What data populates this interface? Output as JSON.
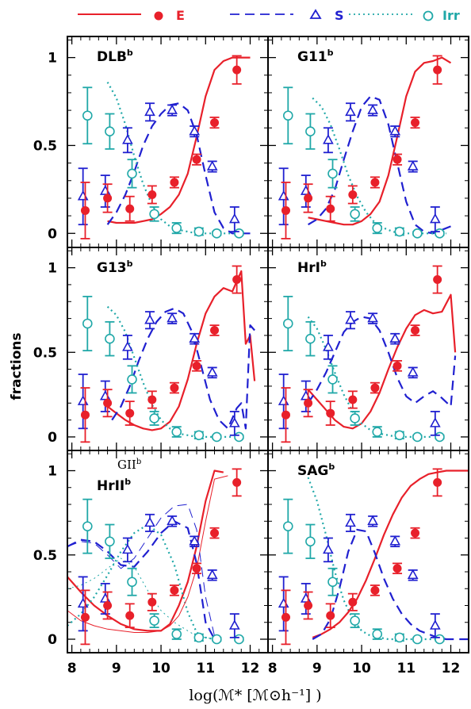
{
  "colors": {
    "E": "#e8202a",
    "S": "#2020d0",
    "Irr": "#20a8a8",
    "frame": "#000000"
  },
  "legend": [
    {
      "key": "E",
      "label": "E",
      "line": "solid",
      "marker": "filled-circle"
    },
    {
      "key": "S",
      "label": "S",
      "line": "dashed",
      "marker": "open-triangle"
    },
    {
      "key": "Irr",
      "label": "Irr",
      "line": "dotted",
      "marker": "open-circle"
    }
  ],
  "axes": {
    "xlabel": "log(ℳ* [ℳ⊙h⁻¹] )",
    "ylabel": "fractions"
  },
  "chart_data": {
    "type": "scatter",
    "layout": "3 rows x 2 columns, shared axes",
    "xlim": [
      7.9,
      12.4
    ],
    "ylim": [
      -0.08,
      1.12
    ],
    "xticks": [
      8,
      9,
      10,
      11,
      12
    ],
    "yticks": [
      0,
      0.5,
      1
    ],
    "xtick_labels": [
      "8",
      "9",
      "10",
      "11",
      "12"
    ],
    "ytick_labels": [
      "0",
      "0.5",
      "1"
    ],
    "observations": {
      "E": {
        "x": [
          8.3,
          8.8,
          9.3,
          9.8,
          10.3,
          10.8,
          11.2,
          11.7
        ],
        "y": [
          0.13,
          0.2,
          0.14,
          0.22,
          0.29,
          0.42,
          0.63,
          0.93
        ],
        "err": [
          0.16,
          0.08,
          0.07,
          0.05,
          0.03,
          0.03,
          0.03,
          0.08
        ]
      },
      "S": {
        "x": [
          8.25,
          8.75,
          9.25,
          9.75,
          10.25,
          10.75,
          11.15,
          11.65
        ],
        "y": [
          0.21,
          0.24,
          0.53,
          0.69,
          0.7,
          0.58,
          0.38,
          0.08
        ],
        "err": [
          0.16,
          0.09,
          0.07,
          0.05,
          0.03,
          0.03,
          0.03,
          0.07
        ]
      },
      "Irr": {
        "x": [
          8.35,
          8.85,
          9.35,
          9.85,
          10.35,
          10.85,
          11.25,
          11.75
        ],
        "y": [
          0.67,
          0.58,
          0.34,
          0.11,
          0.03,
          0.01,
          0.0,
          0.0
        ],
        "err": [
          0.16,
          0.1,
          0.08,
          0.04,
          0.03,
          0.02,
          0.01,
          0.01
        ]
      }
    },
    "panels": [
      {
        "title": "DLB",
        "sup": "b",
        "E": {
          "x": [
            8.8,
            9.0,
            9.2,
            9.4,
            9.6,
            9.8,
            10.0,
            10.2,
            10.4,
            10.6,
            10.8,
            11.0,
            11.2,
            11.4,
            11.6,
            11.8,
            12.0
          ],
          "y": [
            0.07,
            0.06,
            0.06,
            0.06,
            0.07,
            0.08,
            0.11,
            0.15,
            0.22,
            0.34,
            0.55,
            0.78,
            0.93,
            0.98,
            1.0,
            1.0,
            1.0
          ]
        },
        "S": {
          "x": [
            8.8,
            9.0,
            9.2,
            9.4,
            9.6,
            9.8,
            10.0,
            10.2,
            10.4,
            10.6,
            10.8,
            11.0,
            11.2,
            11.4,
            11.6,
            11.8,
            12.0
          ],
          "y": [
            0.05,
            0.12,
            0.22,
            0.35,
            0.5,
            0.61,
            0.68,
            0.73,
            0.74,
            0.7,
            0.56,
            0.33,
            0.12,
            0.03,
            0.0,
            0.0,
            0.0
          ]
        },
        "Irr": {
          "x": [
            8.8,
            9.0,
            9.2,
            9.4,
            9.6,
            9.8,
            10.0,
            10.2,
            10.4,
            10.6,
            10.8,
            11.0,
            11.2,
            11.4,
            11.6
          ],
          "y": [
            0.86,
            0.77,
            0.62,
            0.44,
            0.28,
            0.16,
            0.08,
            0.04,
            0.02,
            0.01,
            0.0,
            0.0,
            0.0,
            0.0,
            0.0
          ]
        }
      },
      {
        "title": "G11",
        "sup": "b",
        "E": {
          "x": [
            8.8,
            9.0,
            9.2,
            9.4,
            9.6,
            9.8,
            10.0,
            10.2,
            10.4,
            10.6,
            10.8,
            11.0,
            11.2,
            11.4,
            11.6,
            11.8,
            12.0
          ],
          "y": [
            0.09,
            0.08,
            0.07,
            0.06,
            0.05,
            0.05,
            0.07,
            0.11,
            0.18,
            0.33,
            0.55,
            0.78,
            0.92,
            0.97,
            0.98,
            1.0,
            0.97
          ]
        },
        "S": {
          "x": [
            8.8,
            9.0,
            9.2,
            9.4,
            9.6,
            9.8,
            10.0,
            10.2,
            10.4,
            10.6,
            10.8,
            11.0,
            11.2,
            11.4,
            11.6,
            11.8,
            12.0
          ],
          "y": [
            0.05,
            0.08,
            0.14,
            0.25,
            0.42,
            0.58,
            0.72,
            0.78,
            0.76,
            0.62,
            0.4,
            0.18,
            0.05,
            0.01,
            0.0,
            0.02,
            0.04
          ]
        },
        "Irr": {
          "x": [
            8.9,
            9.1,
            9.3,
            9.5,
            9.7,
            9.9,
            10.1,
            10.3,
            10.5,
            10.7,
            10.9,
            11.1,
            11.3,
            11.5,
            11.7,
            11.9
          ],
          "y": [
            0.77,
            0.72,
            0.62,
            0.48,
            0.33,
            0.21,
            0.12,
            0.06,
            0.03,
            0.01,
            0.0,
            0.0,
            0.0,
            0.0,
            0.0,
            0.0
          ]
        }
      },
      {
        "title": "G13",
        "sup": "b",
        "E": {
          "x": [
            8.8,
            9.0,
            9.2,
            9.4,
            9.6,
            9.8,
            10.0,
            10.2,
            10.4,
            10.6,
            10.8,
            11.0,
            11.2,
            11.4,
            11.6,
            11.8,
            11.9,
            12.0,
            12.1
          ],
          "y": [
            0.18,
            0.14,
            0.1,
            0.07,
            0.05,
            0.04,
            0.05,
            0.09,
            0.18,
            0.34,
            0.55,
            0.73,
            0.83,
            0.88,
            0.86,
            0.98,
            0.55,
            0.6,
            0.33
          ]
        },
        "S": {
          "x": [
            8.9,
            9.1,
            9.3,
            9.5,
            9.7,
            9.9,
            10.1,
            10.3,
            10.5,
            10.7,
            10.9,
            11.1,
            11.3,
            11.5,
            11.7,
            11.8,
            11.9,
            12.0,
            12.1
          ],
          "y": [
            0.1,
            0.18,
            0.3,
            0.45,
            0.58,
            0.68,
            0.74,
            0.76,
            0.73,
            0.62,
            0.42,
            0.22,
            0.1,
            0.05,
            0.17,
            0.2,
            0.05,
            0.66,
            0.63
          ]
        },
        "Irr": {
          "x": [
            8.8,
            9.0,
            9.2,
            9.4,
            9.6,
            9.8,
            10.0,
            10.2,
            10.4,
            10.6,
            10.8,
            11.0,
            11.2,
            11.4,
            11.6
          ],
          "y": [
            0.77,
            0.72,
            0.62,
            0.47,
            0.32,
            0.19,
            0.1,
            0.05,
            0.02,
            0.01,
            0.0,
            0.0,
            0.0,
            0.0,
            0.0
          ]
        }
      },
      {
        "title": "HrI",
        "sup": "b",
        "E": {
          "x": [
            8.8,
            9.0,
            9.2,
            9.4,
            9.6,
            9.8,
            10.0,
            10.2,
            10.4,
            10.6,
            10.8,
            11.0,
            11.2,
            11.4,
            11.6,
            11.8,
            12.0,
            12.1
          ],
          "y": [
            0.28,
            0.22,
            0.16,
            0.1,
            0.06,
            0.05,
            0.08,
            0.15,
            0.26,
            0.4,
            0.53,
            0.64,
            0.72,
            0.75,
            0.73,
            0.74,
            0.84,
            0.5
          ]
        },
        "S": {
          "x": [
            8.8,
            9.0,
            9.2,
            9.4,
            9.6,
            9.8,
            10.0,
            10.2,
            10.4,
            10.6,
            10.8,
            11.0,
            11.2,
            11.4,
            11.6,
            11.8,
            12.0,
            12.1
          ],
          "y": [
            0.2,
            0.28,
            0.38,
            0.5,
            0.62,
            0.68,
            0.71,
            0.7,
            0.63,
            0.5,
            0.35,
            0.24,
            0.2,
            0.24,
            0.27,
            0.23,
            0.18,
            0.48
          ]
        },
        "Irr": {
          "x": [
            8.8,
            9.0,
            9.2,
            9.4,
            9.6,
            9.8,
            10.0,
            10.2,
            10.4,
            10.6,
            10.8,
            11.0,
            11.2,
            11.4,
            11.6
          ],
          "y": [
            0.71,
            0.64,
            0.52,
            0.38,
            0.25,
            0.15,
            0.08,
            0.04,
            0.02,
            0.01,
            0.0,
            0.0,
            0.0,
            0.0,
            0.0
          ]
        }
      },
      {
        "title": "HrII",
        "sup": "b",
        "subtitle": "GII",
        "subtitle_sup": "b",
        "E": {
          "x": [
            7.9,
            8.2,
            8.5,
            8.8,
            9.1,
            9.4,
            9.7,
            10.0,
            10.2,
            10.4,
            10.6,
            10.8,
            11.0,
            11.2,
            11.4
          ],
          "y": [
            0.37,
            0.28,
            0.2,
            0.14,
            0.09,
            0.06,
            0.05,
            0.05,
            0.09,
            0.2,
            0.34,
            0.55,
            0.82,
            1.0,
            0.99
          ]
        },
        "S": {
          "x": [
            7.9,
            8.2,
            8.5,
            8.8,
            9.1,
            9.4,
            9.7,
            10.0,
            10.3,
            10.6,
            10.8,
            11.0,
            11.2
          ],
          "y": [
            0.55,
            0.59,
            0.58,
            0.52,
            0.44,
            0.43,
            0.52,
            0.63,
            0.7,
            0.66,
            0.45,
            0.1,
            0.0
          ]
        },
        "Irr": {
          "x": [
            7.9,
            8.2,
            8.5,
            8.8,
            9.1,
            9.4,
            9.7,
            10.0,
            10.3,
            10.6,
            10.8,
            11.0,
            11.2
          ],
          "y": [
            0.08,
            0.15,
            0.25,
            0.38,
            0.52,
            0.63,
            0.68,
            0.62,
            0.44,
            0.16,
            0.04,
            0.01,
            0.0
          ]
        },
        "E_thin": {
          "x": [
            7.9,
            8.2,
            8.5,
            8.8,
            9.1,
            9.4,
            9.7,
            10.0,
            10.2,
            10.4,
            10.6,
            10.8,
            11.0,
            11.2,
            11.5
          ],
          "y": [
            0.17,
            0.11,
            0.08,
            0.06,
            0.05,
            0.04,
            0.04,
            0.05,
            0.08,
            0.14,
            0.25,
            0.42,
            0.7,
            0.95,
            0.97
          ]
        },
        "S_thin": {
          "x": [
            7.9,
            8.2,
            8.5,
            8.8,
            9.1,
            9.4,
            9.7,
            10.0,
            10.3,
            10.6,
            10.8,
            11.0,
            11.2
          ],
          "y": [
            0.55,
            0.58,
            0.57,
            0.5,
            0.42,
            0.48,
            0.6,
            0.72,
            0.79,
            0.8,
            0.65,
            0.25,
            0.02
          ]
        },
        "Irr_thin": {
          "x": [
            7.9,
            8.2,
            8.5,
            8.8,
            9.1,
            9.4,
            9.7,
            10.0,
            10.3,
            10.6,
            10.8,
            11.0,
            11.2
          ],
          "y": [
            0.3,
            0.32,
            0.36,
            0.42,
            0.48,
            0.43,
            0.29,
            0.17,
            0.1,
            0.05,
            0.02,
            0.01,
            0.0
          ]
        }
      },
      {
        "title": "SAG",
        "sup": "b",
        "E": {
          "x": [
            8.9,
            9.1,
            9.3,
            9.5,
            9.7,
            9.9,
            10.1,
            10.3,
            10.5,
            10.7,
            10.9,
            11.1,
            11.3,
            11.5,
            11.7,
            11.9,
            12.1,
            12.4
          ],
          "y": [
            0.01,
            0.03,
            0.06,
            0.1,
            0.16,
            0.24,
            0.35,
            0.48,
            0.62,
            0.74,
            0.84,
            0.91,
            0.95,
            0.98,
            0.99,
            1.0,
            1.0,
            1.0
          ]
        },
        "S": {
          "x": [
            8.9,
            9.1,
            9.3,
            9.5,
            9.7,
            9.9,
            10.1,
            10.3,
            10.5,
            10.7,
            10.9,
            11.1,
            11.3,
            11.5,
            11.7,
            11.9,
            12.1,
            12.4
          ],
          "y": [
            0.0,
            0.03,
            0.12,
            0.3,
            0.52,
            0.65,
            0.64,
            0.51,
            0.36,
            0.24,
            0.15,
            0.09,
            0.05,
            0.03,
            0.01,
            0.0,
            0.0,
            0.0
          ]
        },
        "Irr": {
          "x": [
            8.8,
            9.0,
            9.2,
            9.4,
            9.6,
            9.8,
            10.0,
            10.2,
            10.4,
            10.6,
            10.8,
            11.0,
            11.2,
            11.4,
            11.6,
            11.8
          ],
          "y": [
            0.96,
            0.82,
            0.62,
            0.4,
            0.23,
            0.12,
            0.05,
            0.02,
            0.01,
            0.0,
            0.0,
            0.0,
            0.0,
            0.0,
            0.0,
            0.0
          ]
        }
      }
    ]
  }
}
